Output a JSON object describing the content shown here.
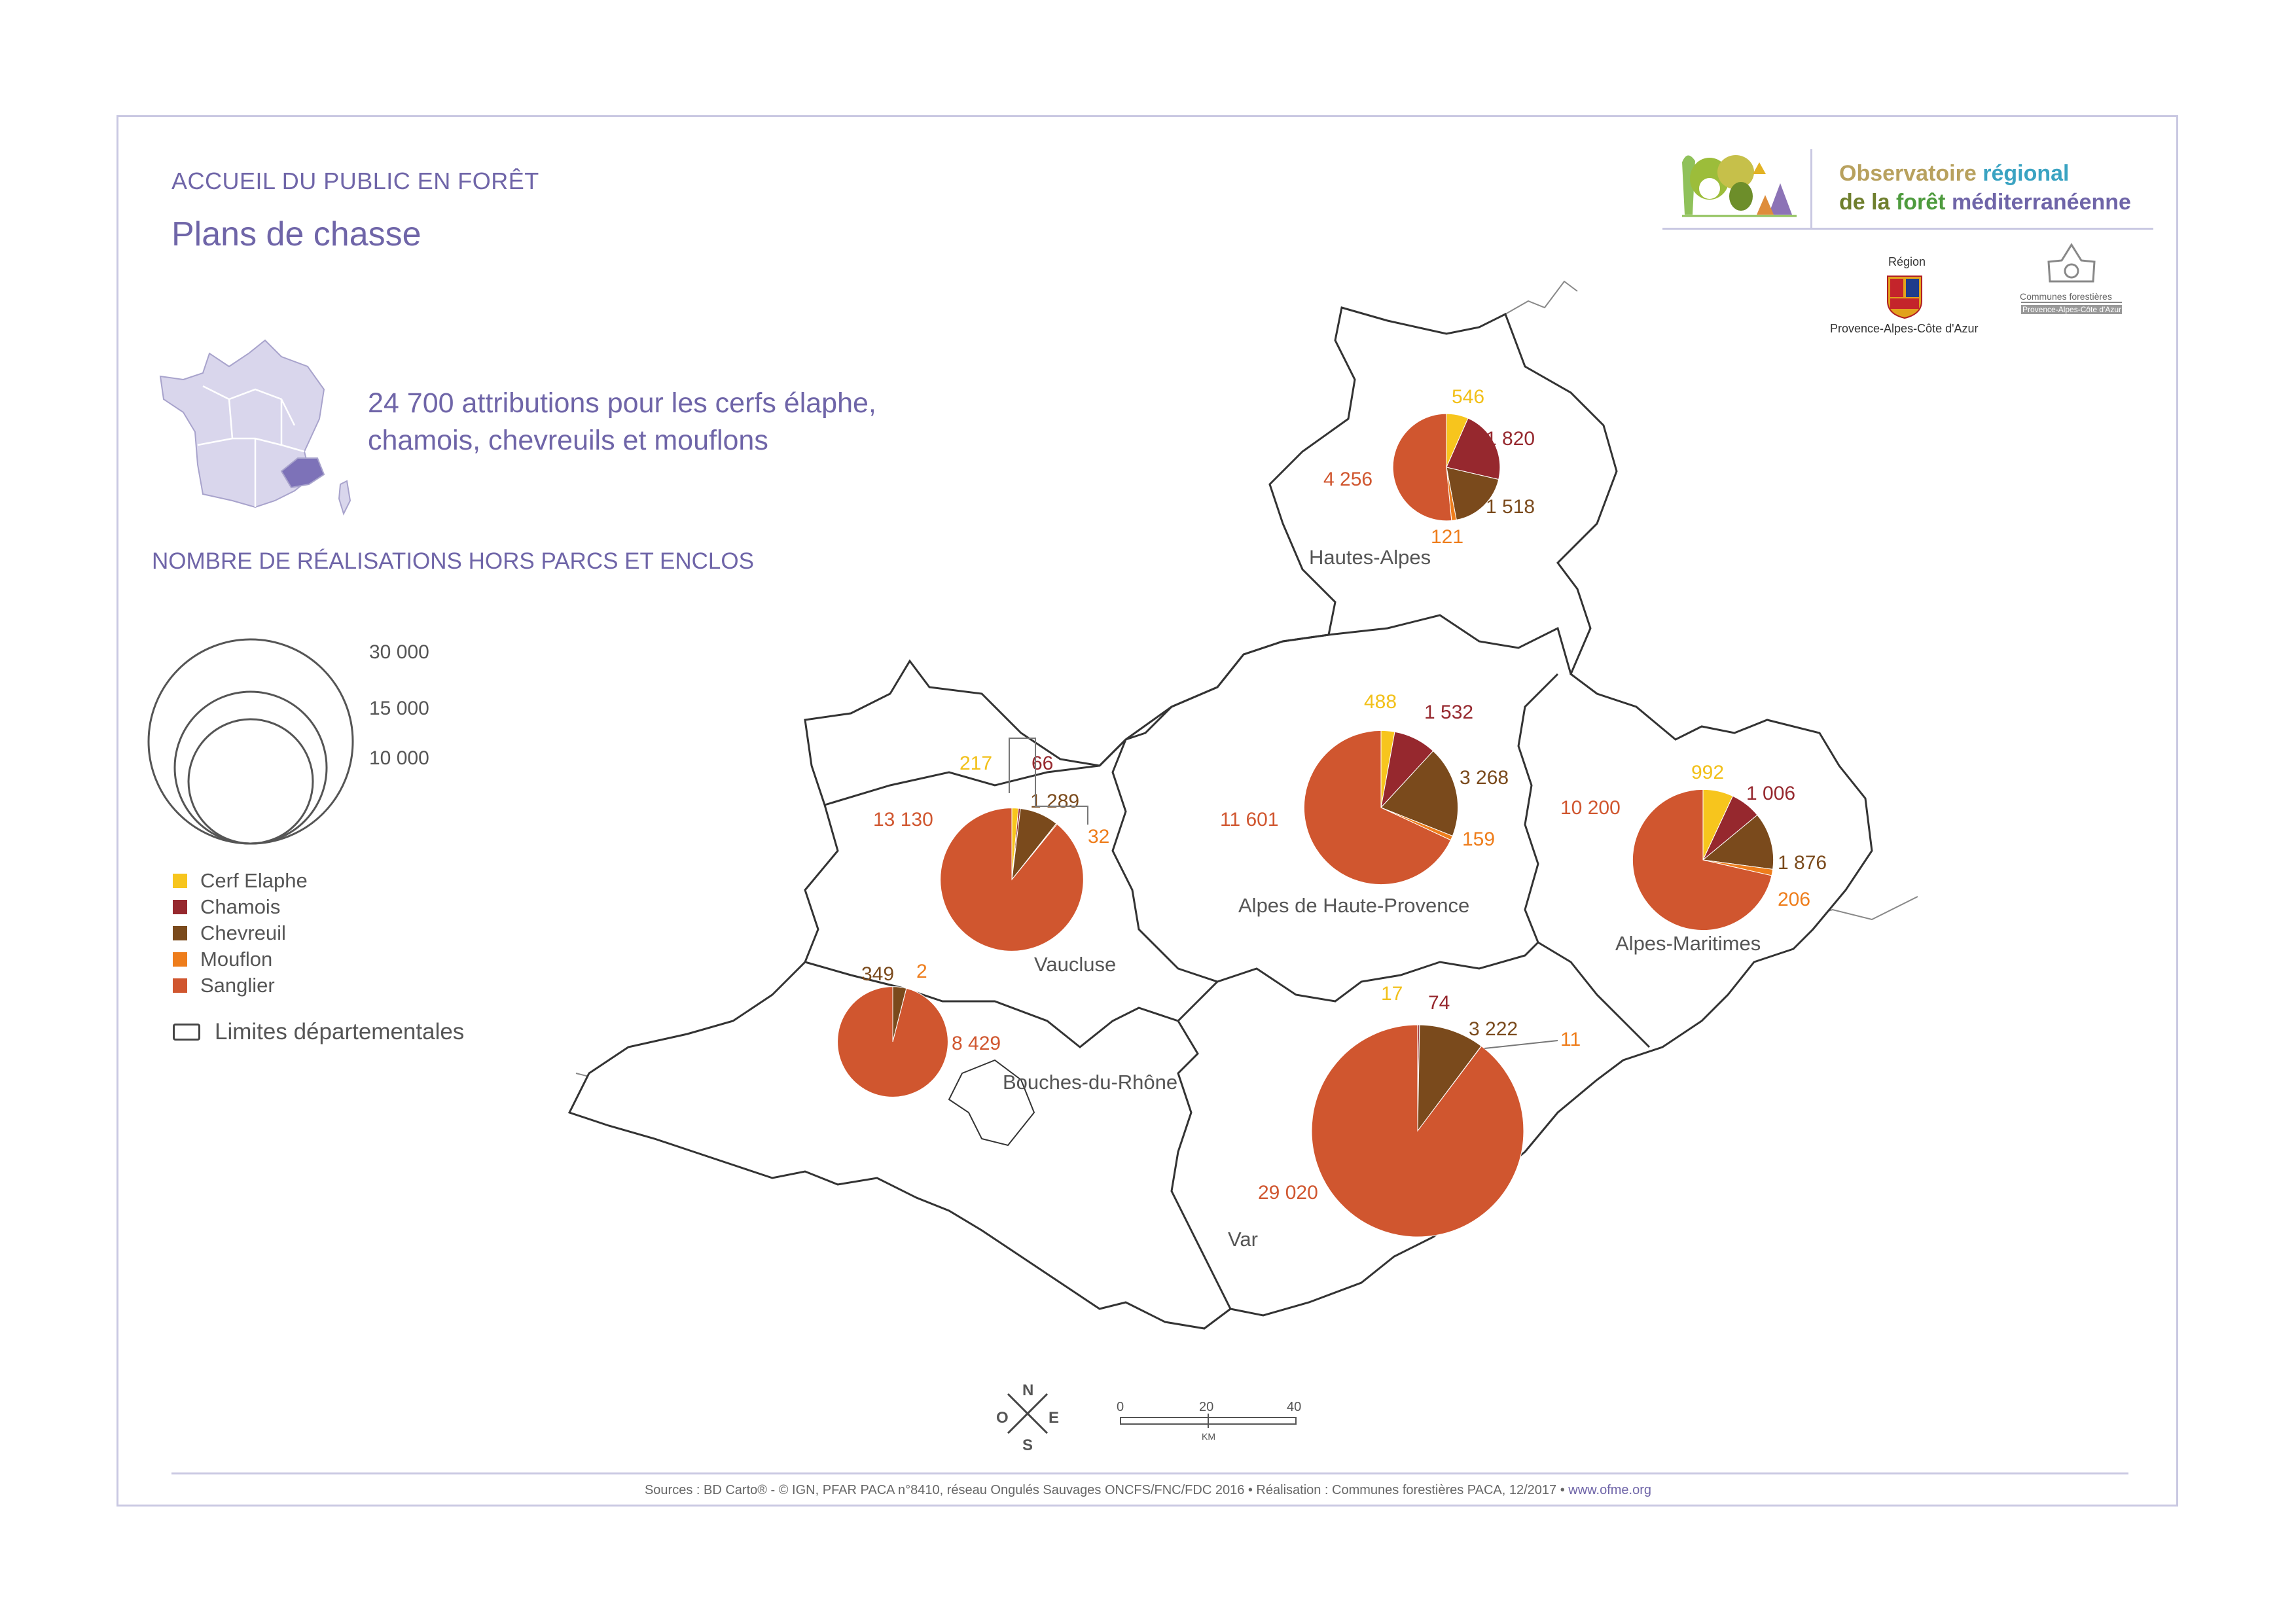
{
  "header": {
    "section": "ACCUEIL DU PUBLIC EN FORÊT",
    "title": "Plans de chasse",
    "headline": "24 700 attributions pour les cerfs élaphe, chamois, chevreuils et mouflons"
  },
  "logos": {
    "observatoire_line1a": "Observatoire",
    "observatoire_line1b": " régional",
    "observatoire_line2a": "de la ",
    "observatoire_line2b": "forêt",
    "observatoire_line2c": " méditerranéenne",
    "region_top": "Région",
    "region_bottom": "Provence-Alpes-Côte d'Azur",
    "communes_top": "Communes forestières",
    "communes_bottom": "Provence-Alpes-Côte d'Azur"
  },
  "legend": {
    "title": "NOMBRE DE RÉALISATIONS HORS PARCS ET ENCLOS",
    "sizes": [
      {
        "label": "30 000",
        "value": 30000
      },
      {
        "label": "15 000",
        "value": 15000
      },
      {
        "label": "10 000",
        "value": 10000
      }
    ],
    "species": [
      {
        "label": "Cerf Elaphe",
        "color": "#f7c51d"
      },
      {
        "label": "Chamois",
        "color": "#96282e"
      },
      {
        "label": "Chevreuil",
        "color": "#7a4a1c"
      },
      {
        "label": "Mouflon",
        "color": "#ee7d1b"
      },
      {
        "label": "Sanglier",
        "color": "#d0562f"
      }
    ],
    "limits": "Limites départementales"
  },
  "departments": [
    {
      "name": "Hautes-Alpes",
      "values": {
        "cerf": 546,
        "chamois": 1820,
        "chevreuil": 1518,
        "mouflon": 121,
        "sanglier": 4256
      },
      "labels": [
        "546",
        "1 820",
        "1 518",
        "121",
        "4 256"
      ]
    },
    {
      "name": "Alpes de Haute-Provence",
      "values": {
        "cerf": 488,
        "chamois": 1532,
        "chevreuil": 3268,
        "mouflon": 159,
        "sanglier": 11601
      },
      "labels": [
        "488",
        "1 532",
        "3 268",
        "159",
        "11 601"
      ]
    },
    {
      "name": "Alpes-Maritimes",
      "values": {
        "cerf": 992,
        "chamois": 1006,
        "chevreuil": 1876,
        "mouflon": 206,
        "sanglier": 10200
      },
      "labels": [
        "992",
        "1 006",
        "1 876",
        "206",
        "10 200"
      ]
    },
    {
      "name": "Vaucluse",
      "values": {
        "cerf": 217,
        "chamois": 66,
        "chevreuil": 1289,
        "mouflon": 32,
        "sanglier": 13130
      },
      "labels": [
        "217",
        "66",
        "1 289",
        "32",
        "13 130"
      ]
    },
    {
      "name": "Bouches-du-Rhône",
      "values": {
        "cerf": 0,
        "chamois": 0,
        "chevreuil": 349,
        "mouflon": 2,
        "sanglier": 8429
      },
      "labels": [
        "",
        "",
        "349",
        "2",
        "8 429"
      ]
    },
    {
      "name": "Var",
      "values": {
        "cerf": 17,
        "chamois": 74,
        "chevreuil": 3222,
        "mouflon": 11,
        "sanglier": 29020
      },
      "labels": [
        "17",
        "74",
        "3 222",
        "11",
        "29 020"
      ]
    }
  ],
  "compass": {
    "n": "N",
    "s": "S",
    "e": "E",
    "o": "O"
  },
  "scalebar": {
    "ticks": [
      "0",
      "20",
      "40"
    ],
    "unit": "KM"
  },
  "footer": {
    "text": "Sources : BD Carto® - © IGN, PFAR PACA n°8410,  réseau Ongulés Sauvages ONCFS/FNC/FDC 2016 • Réalisation : Communes forestières PACA, 12/2017 • ",
    "web": "www.ofme.org"
  }
}
